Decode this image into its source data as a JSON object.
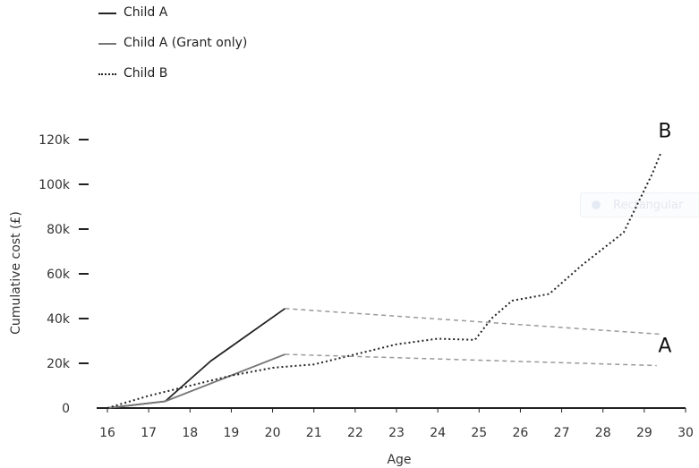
{
  "chart_data": {
    "type": "line",
    "xlabel": "Age",
    "ylabel": "Cumulative cost (£)",
    "xlim": [
      16,
      30
    ],
    "ylim": [
      0,
      120000
    ],
    "x_ticks": [
      16,
      17,
      18,
      19,
      20,
      21,
      22,
      23,
      24,
      25,
      26,
      27,
      28,
      29,
      30
    ],
    "x_tick_labels": [
      "16",
      "17",
      "18",
      "19",
      "20",
      "21",
      "22",
      "23",
      "24",
      "25",
      "26",
      "27",
      "28",
      "29",
      "30"
    ],
    "y_ticks": [
      0,
      20000,
      40000,
      60000,
      80000,
      100000,
      120000
    ],
    "y_tick_labels": [
      "0",
      "20k",
      "40k",
      "60k",
      "80k",
      "100k",
      "120k"
    ],
    "legend_position": "top-left",
    "series": [
      {
        "name": "Child A",
        "style": "solid",
        "color": "#222222",
        "x": [
          16,
          17.4,
          18.5,
          20.3
        ],
        "y": [
          0,
          3000,
          21000,
          44500
        ]
      },
      {
        "name": "Child A (Grant only)",
        "style": "solid",
        "color": "#777777",
        "x": [
          16,
          17.4,
          20.3
        ],
        "y": [
          0,
          3000,
          24000
        ]
      },
      {
        "name": "Child B",
        "style": "dotted",
        "color": "#222222",
        "x": [
          16,
          17,
          18,
          19,
          20,
          20.3,
          21,
          22,
          23,
          24,
          24.9,
          25.3,
          25.8,
          26.7,
          27.5,
          28.5,
          29.2,
          29.4
        ],
        "y": [
          0,
          5500,
          10000,
          14500,
          18000,
          18500,
          19500,
          24000,
          28500,
          31000,
          30500,
          40000,
          48000,
          51000,
          64000,
          78500,
          105000,
          114000
        ]
      },
      {
        "name": "",
        "style": "dashed",
        "color": "#999999",
        "x": [
          20.3,
          29.4
        ],
        "y": [
          44500,
          33000
        ]
      },
      {
        "name": "",
        "style": "dashed",
        "color": "#999999",
        "x": [
          20.3,
          29.3
        ],
        "y": [
          24000,
          19000
        ]
      }
    ],
    "annotations": [
      {
        "text": "B",
        "x": 29.5,
        "y": 121000
      },
      {
        "text": "A",
        "x": 29.5,
        "y": 25000
      }
    ]
  },
  "overlay": {
    "label": "Rectangular"
  }
}
